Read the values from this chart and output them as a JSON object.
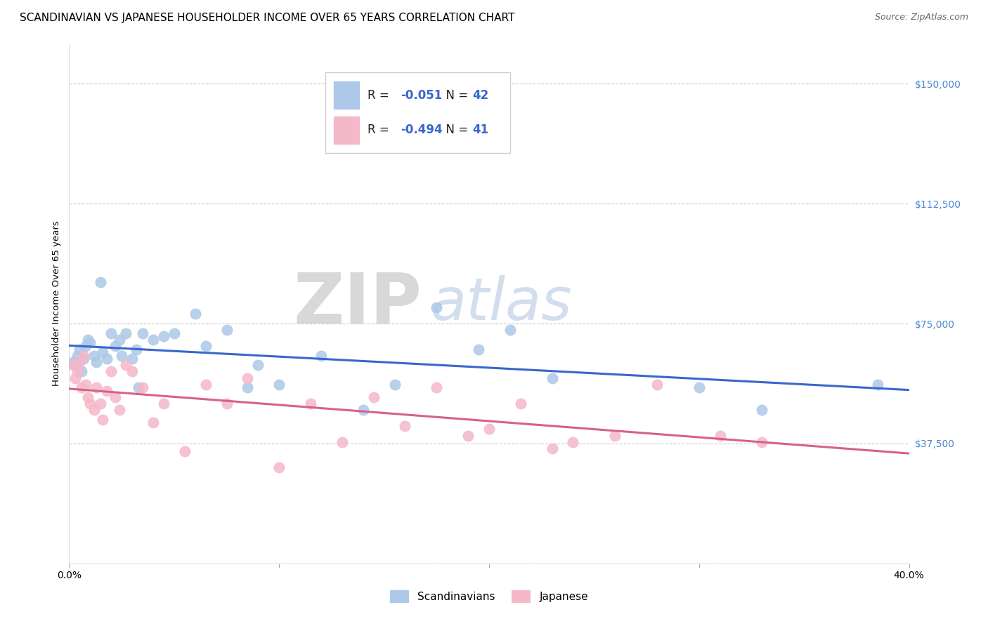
{
  "title": "SCANDINAVIAN VS JAPANESE HOUSEHOLDER INCOME OVER 65 YEARS CORRELATION CHART",
  "source": "Source: ZipAtlas.com",
  "ylabel": "Householder Income Over 65 years",
  "xlim": [
    0.0,
    0.4
  ],
  "ylim": [
    0,
    162500
  ],
  "yticks": [
    0,
    37500,
    75000,
    112500,
    150000
  ],
  "ytick_labels": [
    "",
    "$37,500",
    "$75,000",
    "$112,500",
    "$150,000"
  ],
  "xticks": [
    0.0,
    0.1,
    0.2,
    0.3,
    0.4
  ],
  "xtick_labels": [
    "0.0%",
    "",
    "",
    "",
    "40.0%"
  ],
  "background_color": "#ffffff",
  "grid_color": "#cccccc",
  "blue_scatter_color": "#adc8e8",
  "pink_scatter_color": "#f5b8c8",
  "line_blue": "#3a66cc",
  "line_pink": "#d9608a",
  "ytick_color": "#4a86cc",
  "R_blue": -0.051,
  "N_blue": 42,
  "R_pink": -0.494,
  "N_pink": 41,
  "scand_x": [
    0.002,
    0.003,
    0.004,
    0.005,
    0.006,
    0.007,
    0.008,
    0.009,
    0.01,
    0.012,
    0.013,
    0.015,
    0.016,
    0.018,
    0.02,
    0.022,
    0.024,
    0.025,
    0.027,
    0.03,
    0.032,
    0.033,
    0.035,
    0.04,
    0.045,
    0.05,
    0.06,
    0.065,
    0.075,
    0.085,
    0.09,
    0.1,
    0.12,
    0.14,
    0.155,
    0.175,
    0.195,
    0.21,
    0.23,
    0.3,
    0.33,
    0.385
  ],
  "scand_y": [
    63000,
    62000,
    65000,
    67000,
    60000,
    64000,
    68000,
    70000,
    69000,
    65000,
    63000,
    88000,
    66000,
    64000,
    72000,
    68000,
    70000,
    65000,
    72000,
    64000,
    67000,
    55000,
    72000,
    70000,
    71000,
    72000,
    78000,
    68000,
    73000,
    55000,
    62000,
    56000,
    65000,
    48000,
    56000,
    80000,
    67000,
    73000,
    58000,
    55000,
    48000,
    56000
  ],
  "japan_x": [
    0.002,
    0.003,
    0.004,
    0.005,
    0.006,
    0.007,
    0.008,
    0.009,
    0.01,
    0.012,
    0.013,
    0.015,
    0.016,
    0.018,
    0.02,
    0.022,
    0.024,
    0.027,
    0.03,
    0.035,
    0.04,
    0.045,
    0.055,
    0.065,
    0.075,
    0.085,
    0.1,
    0.115,
    0.13,
    0.145,
    0.16,
    0.175,
    0.19,
    0.2,
    0.215,
    0.23,
    0.24,
    0.26,
    0.28,
    0.31,
    0.33
  ],
  "japan_y": [
    62000,
    58000,
    60000,
    63000,
    55000,
    65000,
    56000,
    52000,
    50000,
    48000,
    55000,
    50000,
    45000,
    54000,
    60000,
    52000,
    48000,
    62000,
    60000,
    55000,
    44000,
    50000,
    35000,
    56000,
    50000,
    58000,
    30000,
    50000,
    38000,
    52000,
    43000,
    55000,
    40000,
    42000,
    50000,
    36000,
    38000,
    40000,
    56000,
    40000,
    38000
  ],
  "watermark_zip": "ZIP",
  "watermark_atlas": "atlas",
  "title_fontsize": 11,
  "axis_label_fontsize": 9.5,
  "tick_fontsize": 10,
  "legend_fontsize": 12
}
